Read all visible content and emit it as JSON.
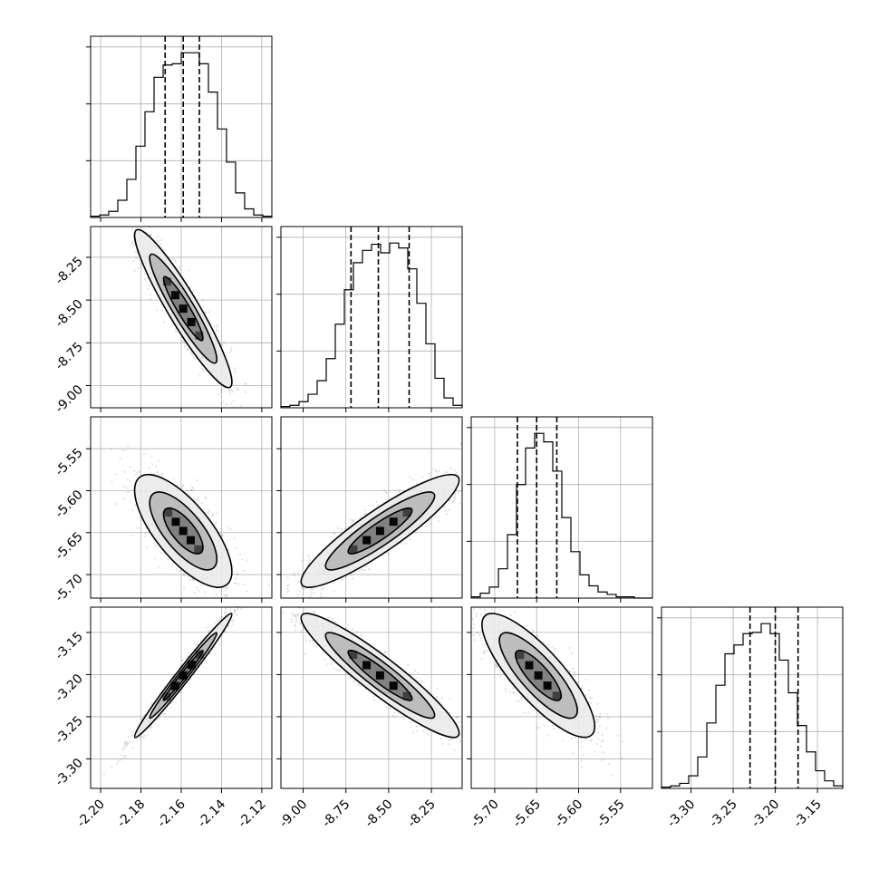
{
  "chart_data": {
    "type": "corner",
    "title": "",
    "params": [
      {
        "index": 0,
        "range": [
          -2.205,
          -2.115
        ],
        "ticks": [
          "-2.20",
          "-2.18",
          "-2.16",
          "-2.14",
          "-2.12"
        ],
        "tick_values": [
          -2.2,
          -2.18,
          -2.16,
          -2.14,
          -2.12
        ],
        "quantiles": [
          -2.168,
          -2.159,
          -2.151
        ],
        "hist_counts": [
          1,
          2,
          5,
          14,
          31,
          58,
          86,
          114,
          124,
          125,
          134,
          134,
          125,
          102,
          72,
          45,
          20,
          7,
          2,
          1
        ]
      },
      {
        "index": 1,
        "range": [
          -9.13,
          -8.07
        ],
        "ticks": [
          "-9.00",
          "-8.75",
          "-8.50",
          "-8.25"
        ],
        "tick_values": [
          -9.0,
          -8.75,
          -8.5,
          -8.25
        ],
        "quantiles": [
          -8.72,
          -8.56,
          -8.38
        ],
        "hist_counts": [
          1,
          2,
          5,
          11,
          22,
          40,
          68,
          96,
          118,
          128,
          133,
          126,
          134,
          130,
          113,
          85,
          52,
          24,
          8,
          2
        ]
      },
      {
        "index": 2,
        "range": [
          -5.728,
          -5.512
        ],
        "ticks": [
          "-5.70",
          "-5.65",
          "-5.60",
          "-5.55"
        ],
        "tick_values": [
          -5.7,
          -5.65,
          -5.6,
          -5.55
        ],
        "quantiles": [
          -5.673,
          -5.65,
          -5.626
        ],
        "hist_counts": [
          1,
          4,
          9,
          24,
          52,
          93,
          123,
          135,
          128,
          104,
          66,
          38,
          19,
          10,
          5,
          3,
          1,
          1,
          0,
          0
        ]
      },
      {
        "index": 3,
        "range": [
          -3.335,
          -3.12
        ],
        "ticks": [
          "-3.30",
          "-3.25",
          "-3.20",
          "-3.15"
        ],
        "tick_values": [
          -3.3,
          -3.25,
          -3.2,
          -3.15
        ],
        "quantiles": [
          -3.23,
          -3.2,
          -3.173
        ],
        "hist_counts": [
          1,
          2,
          4,
          10,
          25,
          52,
          82,
          107,
          114,
          123,
          124,
          131,
          123,
          102,
          76,
          50,
          29,
          14,
          6,
          2
        ]
      }
    ],
    "correlations": [
      [
        1.0,
        -0.93,
        -0.72,
        0.985
      ],
      [
        -0.93,
        1.0,
        0.9,
        -0.93
      ],
      [
        -0.72,
        0.9,
        1.0,
        -0.82
      ],
      [
        0.985,
        -0.93,
        -0.82,
        1.0
      ]
    ],
    "centers": [
      -2.159,
      -8.55,
      -5.648,
      -3.201
    ],
    "sigmas": [
      0.0115,
      0.22,
      0.032,
      0.035
    ],
    "grid": true,
    "legend": "none",
    "colors": {
      "marks": "#000000",
      "grid": "#b0b0b0",
      "fill_light": "#ebebeb",
      "fill_mid": "#b8b8b8",
      "fill_dark": "#7a7a7a"
    }
  }
}
